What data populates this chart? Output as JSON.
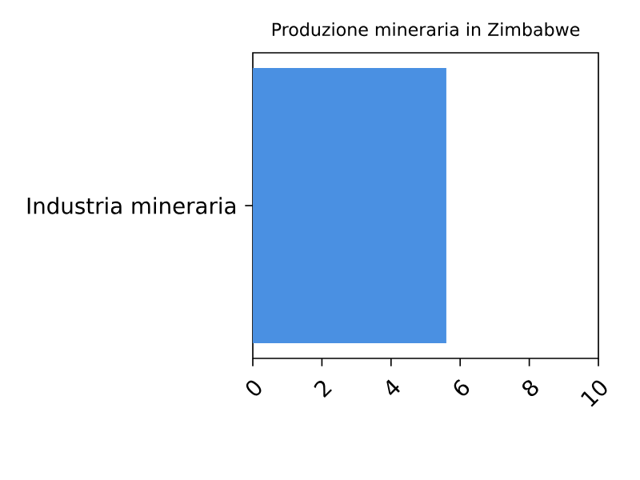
{
  "chart_data": {
    "type": "bar",
    "orientation": "horizontal",
    "title": "Produzione mineraria in Zimbabwe",
    "categories": [
      "Industria mineraria"
    ],
    "values": [
      5.6
    ],
    "color": "#4a90e2",
    "xlim": [
      0,
      10
    ],
    "xticks": [
      0,
      2,
      4,
      6,
      8,
      10
    ]
  }
}
